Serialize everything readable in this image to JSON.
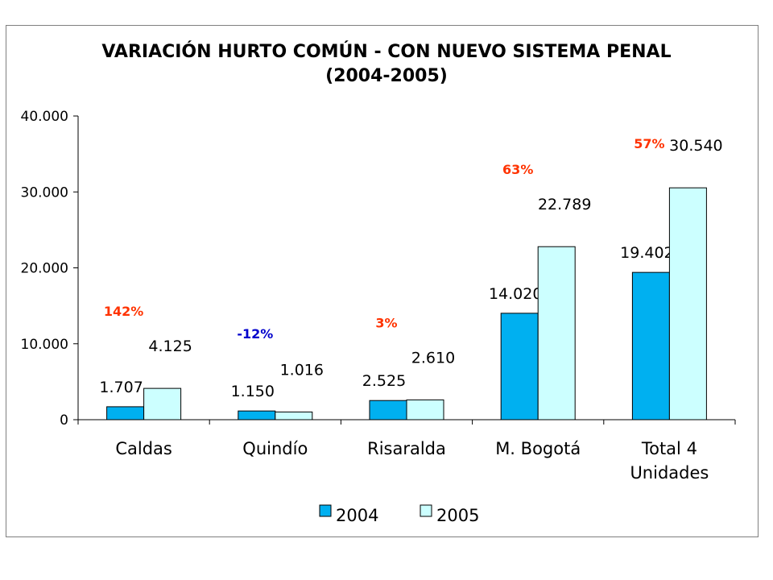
{
  "title_line1": "VARIACIÓN HURTO COMÚN - CON NUEVO SISTEMA PENAL",
  "title_line2": "(2004-2005)",
  "colors": {
    "s2004": "#00b0f0",
    "s2005": "#ccffff",
    "pct_pos": "#ff3300",
    "pct_neg": "#0000cc"
  },
  "chart_data": {
    "type": "bar",
    "title": "VARIACIÓN HURTO COMÚN - CON NUEVO SISTEMA PENAL (2004-2005)",
    "categories": [
      [
        "Caldas"
      ],
      [
        "Quindío"
      ],
      [
        "Risaralda"
      ],
      [
        "M. Bogotá"
      ],
      [
        "Total 4",
        "Unidades"
      ]
    ],
    "series": [
      {
        "name": "2004",
        "values": [
          1707,
          1150,
          2525,
          14020,
          19402
        ],
        "labels": [
          "1.707",
          "1.150",
          "2.525",
          "14.020",
          "19.402"
        ]
      },
      {
        "name": "2005",
        "values": [
          4125,
          1016,
          2610,
          22789,
          30540
        ],
        "labels": [
          "4.125",
          "1.016",
          "2.610",
          "22.789",
          "30.540"
        ]
      }
    ],
    "variation_labels": [
      "142%",
      "-12%",
      "3%",
      "63%",
      "57%"
    ],
    "ylim": [
      0,
      40000
    ],
    "yticks": [
      0,
      10000,
      20000,
      30000,
      40000
    ],
    "ytick_labels": [
      "0",
      "10.000",
      "20.000",
      "30.000",
      "40.000"
    ],
    "legend": "bottom",
    "grid": false
  }
}
